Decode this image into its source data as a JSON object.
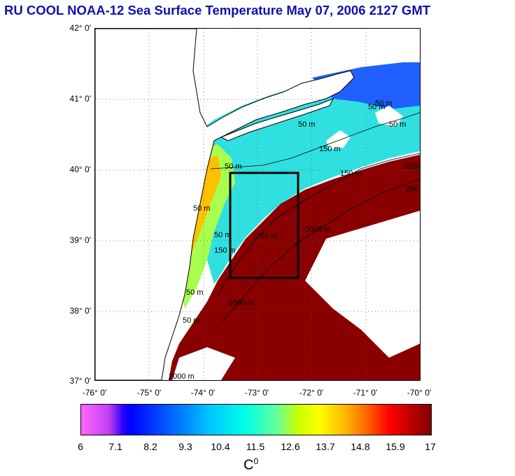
{
  "title": "RU COOL  NOAA-12 Sea Surface Temperature May 07, 2006 2127 GMT",
  "lat_labels": [
    "42° 0'",
    "41° 0'",
    "40° 0'",
    "39° 0'",
    "38° 0'",
    "37° 0'"
  ],
  "lon_labels": [
    "-76° 0'",
    "-75° 0'",
    "-74° 0'",
    "-73° 0'",
    "-72° 0'",
    "-71° 0'",
    "-70° 0'"
  ],
  "contour_labels": [
    "50 m",
    "50 m",
    "50 m",
    "150 m",
    "150 m",
    "2000 m",
    "2000 m",
    "50 m",
    "150 m",
    "50 m",
    "150 m",
    "2000 m",
    "50 m",
    "50 m",
    "2000 m",
    "50 m",
    "50 m",
    "200"
  ],
  "colorbar": {
    "ticks": [
      "6",
      "7.1",
      "8.2",
      "9.3",
      "10.4",
      "11.5",
      "12.6",
      "13.7",
      "14.8",
      "15.9",
      "17"
    ],
    "unit_base": "C",
    "unit_sup": "0",
    "min": 6,
    "max": 17
  },
  "study_box": {
    "lon_min": -73.5,
    "lon_max": -72.5,
    "lat_min": 38.5,
    "lat_max": 40.0
  }
}
